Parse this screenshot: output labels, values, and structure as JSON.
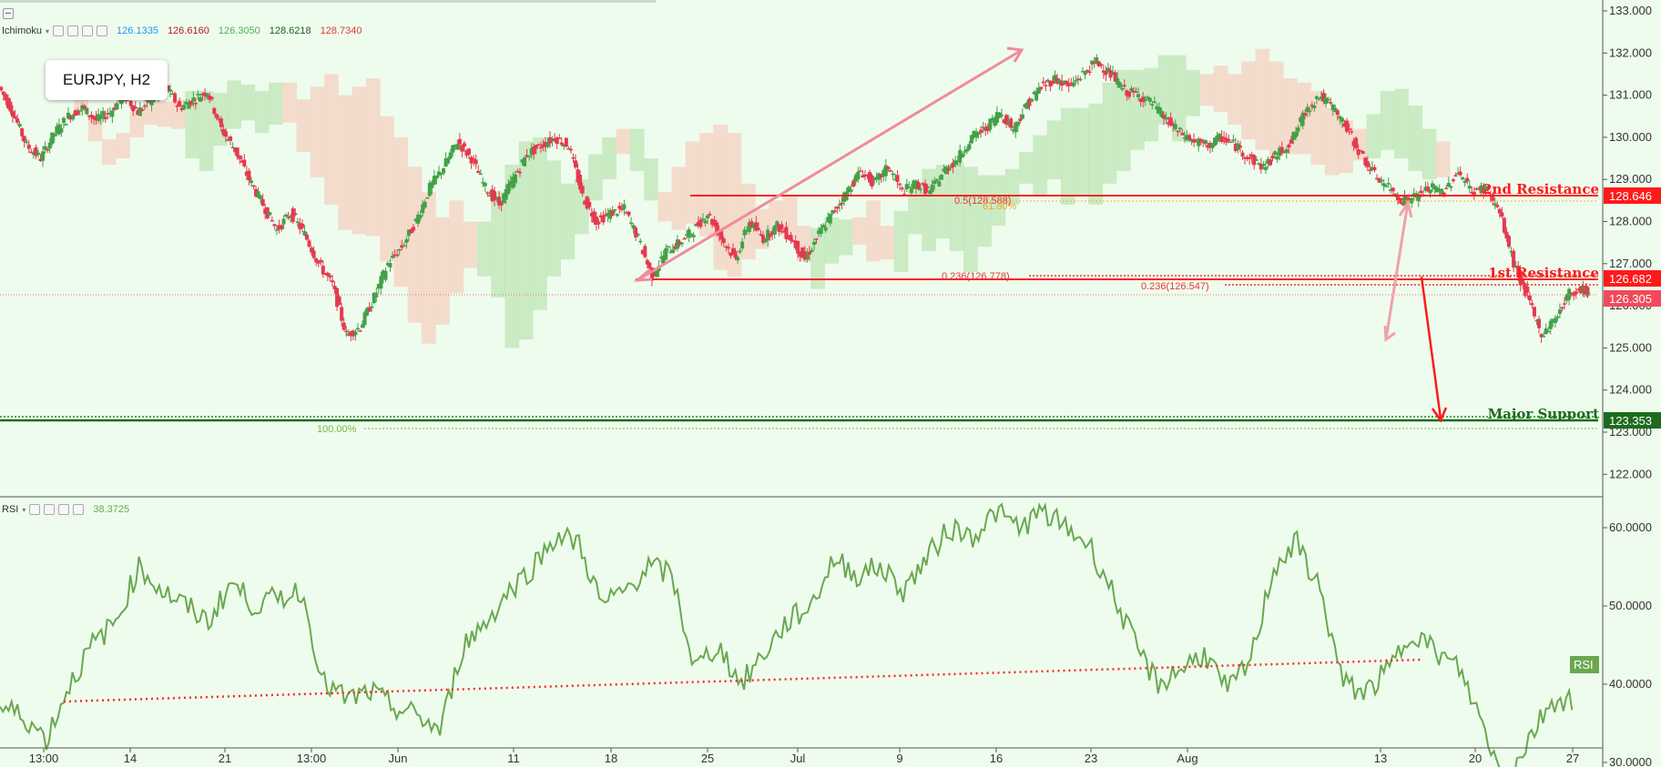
{
  "symbol": "EURJPY,  H2",
  "ichimoku": {
    "name": "Ichimoku",
    "values": [
      "126.1335",
      "126.6160",
      "126.3050",
      "128.6218",
      "128.7340"
    ],
    "colors": [
      "#2196f3",
      "#b71c1c",
      "#4caf50",
      "#1b5e20",
      "#e53935"
    ]
  },
  "rsi": {
    "name": "RSI",
    "value": "38.3725",
    "tag": "RSI"
  },
  "price_axis": [
    "133.000",
    "132.000",
    "131.000",
    "130.000",
    "129.000",
    "128.000",
    "127.000",
    "126.000",
    "125.000",
    "124.000",
    "123.000",
    "122.000"
  ],
  "rsi_axis": [
    "60.0000",
    "50.0000",
    "40.0000",
    "30.0000"
  ],
  "time_axis": [
    "13:00",
    "14",
    "21",
    "13:00",
    "Jun",
    "11",
    "18",
    "25",
    "Jul",
    "9",
    "16",
    "23",
    "Aug",
    "13",
    "20",
    "27"
  ],
  "labels": {
    "res2": "2nd Resistance",
    "res1": "1st Resistance",
    "support": "Major Support",
    "fib_05": "0.5(128.588)",
    "fib_618": "61.80%",
    "fib_0236a": "0.236(126.778)",
    "fib_0236b": "0.236(126.547)",
    "fib_100": "100.00%"
  },
  "price_tags": {
    "res2": "128.646",
    "res1": "126.682",
    "current": "126.305",
    "support": "123.353"
  },
  "colors": {
    "up": "#43a047",
    "down": "#e53950",
    "resistance": "#ff1a1a",
    "support": "#1e7b1e",
    "rsi_line": "#6aa84f",
    "background": "#eefcee"
  },
  "chart_data": {
    "type": "candlestick",
    "x_ticks": [
      "13:00",
      "14",
      "21",
      "13:00",
      "Jun",
      "11",
      "18",
      "25",
      "Jul",
      "9",
      "16",
      "23",
      "Aug",
      "13",
      "20",
      "27"
    ],
    "ylim": [
      121.5,
      133.3
    ],
    "close_path": [
      [
        0.0,
        131.2
      ],
      [
        0.3,
        130.6
      ],
      [
        0.6,
        129.8
      ],
      [
        0.9,
        129.5
      ],
      [
        1.2,
        130.1
      ],
      [
        1.5,
        130.5
      ],
      [
        1.8,
        130.7
      ],
      [
        2.1,
        130.4
      ],
      [
        2.4,
        130.6
      ],
      [
        2.7,
        131.0
      ],
      [
        3.0,
        130.6
      ],
      [
        3.3,
        130.9
      ],
      [
        3.6,
        131.2
      ],
      [
        3.9,
        130.7
      ],
      [
        4.2,
        130.9
      ],
      [
        4.5,
        131.1
      ],
      [
        4.8,
        130.2
      ],
      [
        5.1,
        129.7
      ],
      [
        5.4,
        129.0
      ],
      [
        5.7,
        128.4
      ],
      [
        6.0,
        127.8
      ],
      [
        6.3,
        128.2
      ],
      [
        6.6,
        127.7
      ],
      [
        6.9,
        127.0
      ],
      [
        7.2,
        126.5
      ],
      [
        7.5,
        125.3
      ],
      [
        7.8,
        125.5
      ],
      [
        8.1,
        126.2
      ],
      [
        8.4,
        127.0
      ],
      [
        8.7,
        127.4
      ],
      [
        9.0,
        128.0
      ],
      [
        9.3,
        128.8
      ],
      [
        9.6,
        129.3
      ],
      [
        9.9,
        129.9
      ],
      [
        10.2,
        129.5
      ],
      [
        10.5,
        128.8
      ],
      [
        10.8,
        128.4
      ],
      [
        11.1,
        129.0
      ],
      [
        11.4,
        129.6
      ],
      [
        11.7,
        129.8
      ],
      [
        12.0,
        130.0
      ],
      [
        12.3,
        129.8
      ],
      [
        12.6,
        128.6
      ],
      [
        12.9,
        128.0
      ],
      [
        13.2,
        128.2
      ],
      [
        13.5,
        128.3
      ],
      [
        13.8,
        127.6
      ],
      [
        14.1,
        126.7
      ],
      [
        14.4,
        127.3
      ],
      [
        14.7,
        127.5
      ],
      [
        15.0,
        127.8
      ],
      [
        15.3,
        128.2
      ],
      [
        15.6,
        127.6
      ],
      [
        15.9,
        127.1
      ],
      [
        16.2,
        128.0
      ],
      [
        16.5,
        127.6
      ],
      [
        16.8,
        127.9
      ],
      [
        17.1,
        127.6
      ],
      [
        17.4,
        127.1
      ],
      [
        17.7,
        127.7
      ],
      [
        18.0,
        128.2
      ],
      [
        18.3,
        128.7
      ],
      [
        18.6,
        129.2
      ],
      [
        18.9,
        128.9
      ],
      [
        19.2,
        129.3
      ],
      [
        19.5,
        128.7
      ],
      [
        19.8,
        128.9
      ],
      [
        20.1,
        128.7
      ],
      [
        20.4,
        129.2
      ],
      [
        20.7,
        129.5
      ],
      [
        21.0,
        130.0
      ],
      [
        21.3,
        130.2
      ],
      [
        21.6,
        130.6
      ],
      [
        21.9,
        130.2
      ],
      [
        22.2,
        130.8
      ],
      [
        22.5,
        131.2
      ],
      [
        22.8,
        131.4
      ],
      [
        23.1,
        131.2
      ],
      [
        23.4,
        131.5
      ],
      [
        23.7,
        131.8
      ],
      [
        24.0,
        131.5
      ],
      [
        24.3,
        131.1
      ],
      [
        24.6,
        131.0
      ],
      [
        24.9,
        130.8
      ],
      [
        25.2,
        130.4
      ],
      [
        25.5,
        130.1
      ],
      [
        25.8,
        129.9
      ],
      [
        26.1,
        129.8
      ],
      [
        26.4,
        130.0
      ],
      [
        26.7,
        129.8
      ],
      [
        27.0,
        129.5
      ],
      [
        27.3,
        129.3
      ],
      [
        27.6,
        129.6
      ],
      [
        27.9,
        129.9
      ],
      [
        28.2,
        130.6
      ],
      [
        28.5,
        131.0
      ],
      [
        28.8,
        130.7
      ],
      [
        29.1,
        130.2
      ],
      [
        29.4,
        129.6
      ],
      [
        29.7,
        129.1
      ],
      [
        30.0,
        128.8
      ],
      [
        30.3,
        128.5
      ],
      [
        30.6,
        128.6
      ],
      [
        30.9,
        128.8
      ],
      [
        31.2,
        128.7
      ],
      [
        31.5,
        129.2
      ],
      [
        31.8,
        128.7
      ],
      [
        32.1,
        128.8
      ],
      [
        32.4,
        128.2
      ],
      [
        32.7,
        127.0
      ],
      [
        33.0,
        126.2
      ],
      [
        33.3,
        125.3
      ],
      [
        33.6,
        125.7
      ],
      [
        33.9,
        126.3
      ],
      [
        34.2,
        126.4
      ],
      [
        34.3,
        126.3
      ]
    ],
    "rsi_series": [
      [
        0.0,
        37
      ],
      [
        0.5,
        36
      ],
      [
        1.0,
        33
      ],
      [
        1.5,
        40
      ],
      [
        2.0,
        45
      ],
      [
        2.5,
        48
      ],
      [
        3.0,
        55
      ],
      [
        3.5,
        52
      ],
      [
        4.0,
        50
      ],
      [
        4.5,
        48
      ],
      [
        5.0,
        53
      ],
      [
        5.5,
        50
      ],
      [
        6.0,
        51
      ],
      [
        6.5,
        52
      ],
      [
        7.0,
        40
      ],
      [
        7.5,
        38
      ],
      [
        8.0,
        39
      ],
      [
        8.5,
        37
      ],
      [
        9.0,
        36
      ],
      [
        9.5,
        34
      ],
      [
        10.0,
        45
      ],
      [
        10.5,
        48
      ],
      [
        11.0,
        52
      ],
      [
        11.5,
        55
      ],
      [
        12.0,
        59
      ],
      [
        12.5,
        58
      ],
      [
        13.0,
        50
      ],
      [
        13.5,
        52
      ],
      [
        14.0,
        55
      ],
      [
        14.5,
        54
      ],
      [
        15.0,
        42
      ],
      [
        15.5,
        45
      ],
      [
        16.0,
        40
      ],
      [
        16.5,
        44
      ],
      [
        17.0,
        48
      ],
      [
        17.5,
        50
      ],
      [
        18.0,
        56
      ],
      [
        18.5,
        54
      ],
      [
        19.0,
        55
      ],
      [
        19.5,
        52
      ],
      [
        20.0,
        56
      ],
      [
        20.5,
        60
      ],
      [
        21.0,
        59
      ],
      [
        21.5,
        62
      ],
      [
        22.0,
        60
      ],
      [
        22.5,
        62
      ],
      [
        23.0,
        60
      ],
      [
        23.5,
        58
      ],
      [
        24.0,
        52
      ],
      [
        24.5,
        45
      ],
      [
        25.0,
        40
      ],
      [
        25.5,
        42
      ],
      [
        26.0,
        44
      ],
      [
        26.5,
        39
      ],
      [
        27.0,
        43
      ],
      [
        27.5,
        55
      ],
      [
        28.0,
        58
      ],
      [
        28.5,
        52
      ],
      [
        29.0,
        40
      ],
      [
        29.5,
        39
      ],
      [
        30.0,
        42
      ],
      [
        30.5,
        47
      ],
      [
        31.0,
        44
      ],
      [
        31.5,
        42
      ],
      [
        32.0,
        35
      ],
      [
        32.5,
        27
      ],
      [
        33.0,
        33
      ],
      [
        33.5,
        38
      ],
      [
        34.0,
        38
      ]
    ],
    "rsi_ylim": [
      26,
      65
    ],
    "levels": {
      "res2": 128.646,
      "res1": 126.682,
      "current": 126.305,
      "support": 123.353
    }
  }
}
